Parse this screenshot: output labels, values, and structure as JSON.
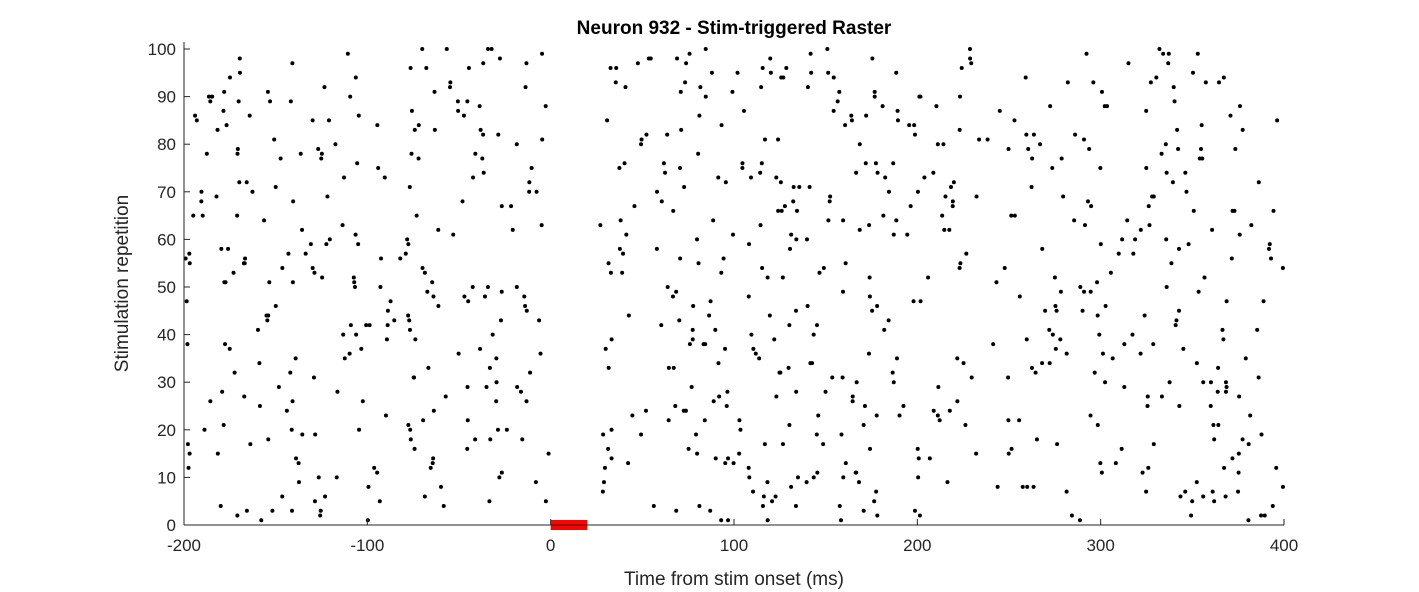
{
  "chart_data": {
    "type": "scatter",
    "title": "Neuron 932 - Stim-triggered Raster",
    "xlabel": "Time from stim onset (ms)",
    "ylabel": "Stimulation repetition",
    "xlim": [
      -200,
      400
    ],
    "ylim": [
      0,
      100
    ],
    "xticks": [
      -200,
      -100,
      0,
      100,
      200,
      300,
      400
    ],
    "yticks": [
      0,
      10,
      20,
      30,
      40,
      50,
      60,
      70,
      80,
      90,
      100
    ],
    "grid": false,
    "marker_color": "#000000",
    "stim_window": {
      "start": 0,
      "end": 20,
      "color": "#ff0000"
    },
    "stim_free_window_ms": [
      0,
      27
    ],
    "seed": 932,
    "series": [
      {
        "trials": 100,
        "spikes_per_trial": 8,
        "x_range": [
          -200,
          400
        ],
        "description_of_values": "spike times (ms) per trial estimated as uniform density outside 0–27 ms"
      }
    ]
  }
}
